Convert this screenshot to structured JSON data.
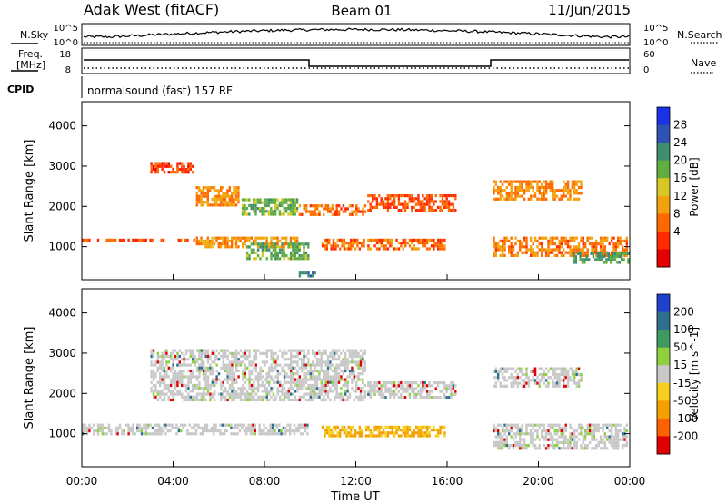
{
  "header": {
    "station": "Adak West (fitACF)",
    "beam": "Beam 01",
    "date": "11/Jun/2015"
  },
  "top_labels": {
    "nsky": "N.Sky",
    "nsearch": "N.Search",
    "freq": "Freq.",
    "mhz": "[MHz]",
    "nave": "Nave",
    "cpid": "CPID",
    "cpid_value": "normalsound (fast) 157 RF",
    "noise_left_hi": "10^5",
    "noise_left_lo": "10^0",
    "noise_right_hi": "10^5",
    "noise_right_lo": "10^0",
    "freq_hi": "18",
    "freq_lo": "8",
    "nave_hi": "60",
    "nave_lo": "0"
  },
  "chart_data": [
    {
      "type": "heatmap",
      "name": "power",
      "ylabel": "Slant Range [km]",
      "xlabel": "Time UT",
      "xlim": [
        0,
        24
      ],
      "ylim": [
        180,
        4600
      ],
      "x_ticks": [
        "00:00",
        "04:00",
        "08:00",
        "12:00",
        "16:00",
        "20:00",
        "00:00"
      ],
      "y_ticks": [
        1000,
        2000,
        3000,
        4000
      ],
      "colorbar": {
        "label": "Power [dB]",
        "ticks": [
          "4",
          "8",
          "12",
          "16",
          "20",
          "24",
          "28"
        ],
        "colors": [
          "#1a32e6",
          "#2e53b5",
          "#3f8f6f",
          "#5fae3f",
          "#d8c826",
          "#f2a20c",
          "#ff6a00",
          "#ff2a00",
          "#e60000"
        ]
      },
      "regions": [
        {
          "desc": "band",
          "t0": 0.0,
          "t1": 5.0,
          "r0": 1060,
          "r1": 1200,
          "level": 6
        },
        {
          "desc": "band",
          "t0": 5.0,
          "t1": 9.5,
          "r0": 940,
          "r1": 1250,
          "level": 11
        },
        {
          "desc": "band",
          "t0": 7.2,
          "t1": 10.0,
          "r0": 640,
          "r1": 1100,
          "level": 21
        },
        {
          "desc": "band",
          "t0": 9.5,
          "t1": 10.3,
          "r0": 200,
          "r1": 380,
          "level": 24
        },
        {
          "desc": "band",
          "t0": 10.5,
          "t1": 16.0,
          "r0": 850,
          "r1": 1200,
          "level": 8
        },
        {
          "desc": "band",
          "t0": 18.0,
          "t1": 24.0,
          "r0": 700,
          "r1": 1250,
          "level": 9
        },
        {
          "desc": "band",
          "t0": 21.5,
          "t1": 24.0,
          "r0": 560,
          "r1": 860,
          "level": 22
        },
        {
          "desc": "upper",
          "t0": 3.0,
          "t1": 5.0,
          "r0": 2750,
          "r1": 3100,
          "level": 5
        },
        {
          "desc": "upper",
          "t0": 5.0,
          "t1": 7.0,
          "r0": 1950,
          "r1": 2500,
          "level": 10
        },
        {
          "desc": "upper",
          "t0": 7.0,
          "t1": 9.5,
          "r0": 1700,
          "r1": 2200,
          "level": 20
        },
        {
          "desc": "upper",
          "t0": 9.5,
          "t1": 12.5,
          "r0": 1750,
          "r1": 2050,
          "level": 8
        },
        {
          "desc": "upper",
          "t0": 12.5,
          "t1": 16.5,
          "r0": 1800,
          "r1": 2300,
          "level": 6
        },
        {
          "desc": "upper",
          "t0": 18.0,
          "t1": 22.0,
          "r0": 2100,
          "r1": 2650,
          "level": 10
        }
      ]
    },
    {
      "type": "heatmap",
      "name": "velocity",
      "ylabel": "Slant Range [km]",
      "xlabel": "Time UT",
      "xlim": [
        0,
        24
      ],
      "ylim": [
        180,
        4600
      ],
      "x_ticks": [
        "00:00",
        "04:00",
        "08:00",
        "12:00",
        "16:00",
        "20:00",
        "00:00"
      ],
      "y_ticks": [
        1000,
        2000,
        3000,
        4000
      ],
      "colorbar": {
        "label": "Velocity [m s^-1]",
        "ticks": [
          "200",
          "100",
          "50",
          "15",
          "-15",
          "-50",
          "-100",
          "-200"
        ],
        "colors": [
          "#2040d0",
          "#2e6f8f",
          "#3f9a5f",
          "#8fd03f",
          "#c8c8c8",
          "#f5d020",
          "#f5a000",
          "#ff6000",
          "#e00000"
        ]
      },
      "regions": [
        {
          "desc": "band",
          "t0": 0.0,
          "t1": 10.0,
          "r0": 950,
          "r1": 1250,
          "level": 0
        },
        {
          "desc": "flow",
          "t0": 10.5,
          "t1": 16.0,
          "r0": 850,
          "r1": 1200,
          "level": -60
        },
        {
          "desc": "upper",
          "t0": 3.0,
          "t1": 12.5,
          "r0": 1750,
          "r1": 3100,
          "level": 0
        },
        {
          "desc": "upper",
          "t0": 12.5,
          "t1": 16.5,
          "r0": 1800,
          "r1": 2300,
          "level": 0
        },
        {
          "desc": "upper",
          "t0": 18.0,
          "t1": 22.0,
          "r0": 2100,
          "r1": 2650,
          "level": 0
        },
        {
          "desc": "band",
          "t0": 18.0,
          "t1": 24.0,
          "r0": 600,
          "r1": 1250,
          "level": 0
        }
      ]
    }
  ]
}
